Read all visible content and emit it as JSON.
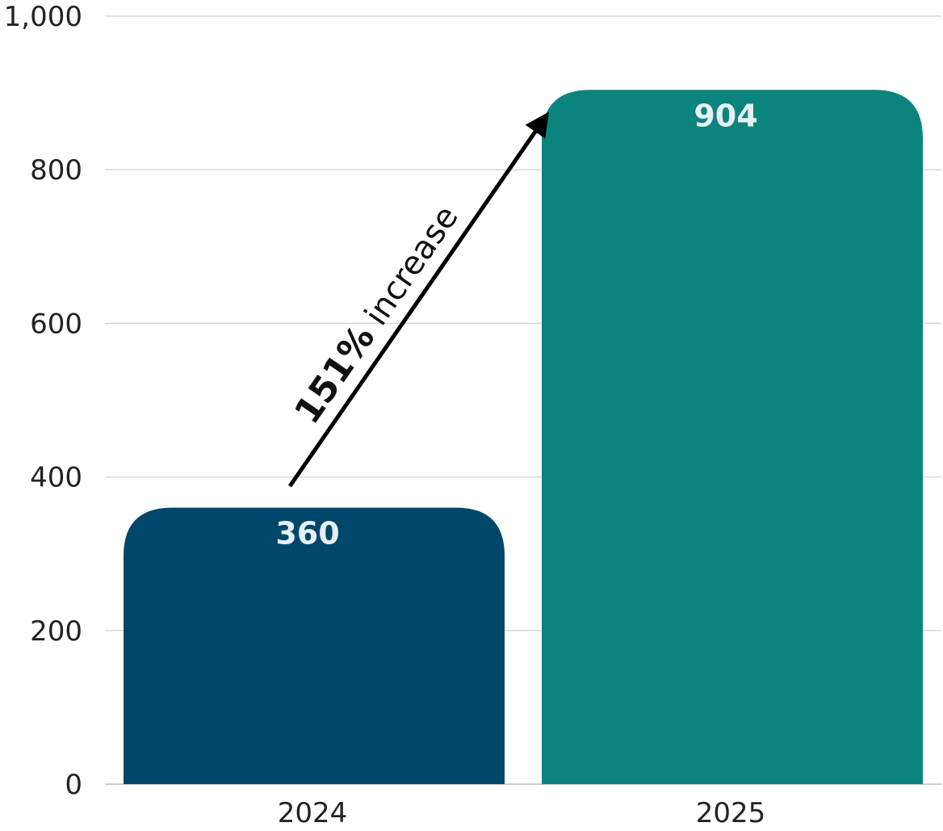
{
  "chart_data": {
    "type": "bar",
    "categories": [
      "2024",
      "2025"
    ],
    "values": [
      360,
      904
    ],
    "data_labels": [
      "360",
      "904"
    ],
    "ylim": [
      0,
      1000
    ],
    "y_ticks": [
      0,
      200,
      400,
      600,
      800,
      1000
    ],
    "y_tick_labels": [
      "0",
      "200",
      "400",
      "600",
      "800",
      "1,000"
    ],
    "grid": true,
    "colors": [
      "#00476c",
      "#0b847e"
    ],
    "annotation": {
      "bold_text": "151%",
      "text": " increase",
      "arrow_from_category": "2024",
      "arrow_to_category": "2025"
    }
  }
}
